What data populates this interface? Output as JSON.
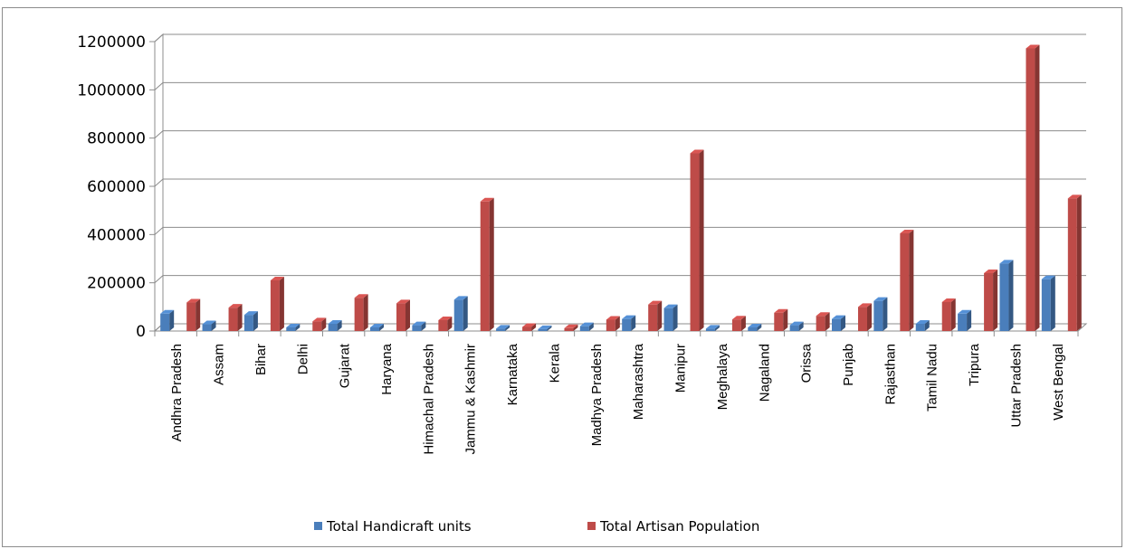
{
  "chart_data": {
    "type": "bar",
    "title": "",
    "xlabel": "",
    "ylabel": "",
    "ylim": [
      0,
      1200000
    ],
    "yticks": [
      "0",
      "200000",
      "400000",
      "600000",
      "800000",
      "1000000",
      "1200000"
    ],
    "grid": true,
    "legend_position": "bottom",
    "categories": [
      "Andhra Pradesh",
      "Assam",
      "Bihar",
      "Delhi",
      "Gujarat",
      "Haryana",
      "Himachal Pradesh",
      "Jammu & Kashmir",
      "Karnataka",
      "Kerala",
      "Madhya Pradesh",
      "Maharashtra",
      "Manipur",
      "Meghalaya",
      "Nagaland",
      "Orissa",
      "Punjab",
      "Rajasthan",
      "Tamil Nadu",
      "Tripura",
      "Uttar Pradesh",
      "West Bengal"
    ],
    "series": [
      {
        "name": "Total Handicraft units",
        "color": "#4a7ebb",
        "values": [
          72000,
          28000,
          67000,
          15000,
          30000,
          15000,
          24000,
          130000,
          10000,
          8000,
          20000,
          50000,
          95000,
          10000,
          15000,
          24000,
          50000,
          125000,
          30000,
          72000,
          280000,
          215000
        ]
      },
      {
        "name": "Total Artisan Population",
        "color": "#be4b48",
        "values": [
          118000,
          97000,
          210000,
          40000,
          138000,
          115000,
          45000,
          537000,
          17000,
          12000,
          47000,
          110000,
          737000,
          48000,
          76000,
          63000,
          100000,
          405000,
          120000,
          240000,
          1172000,
          550000
        ]
      }
    ]
  }
}
